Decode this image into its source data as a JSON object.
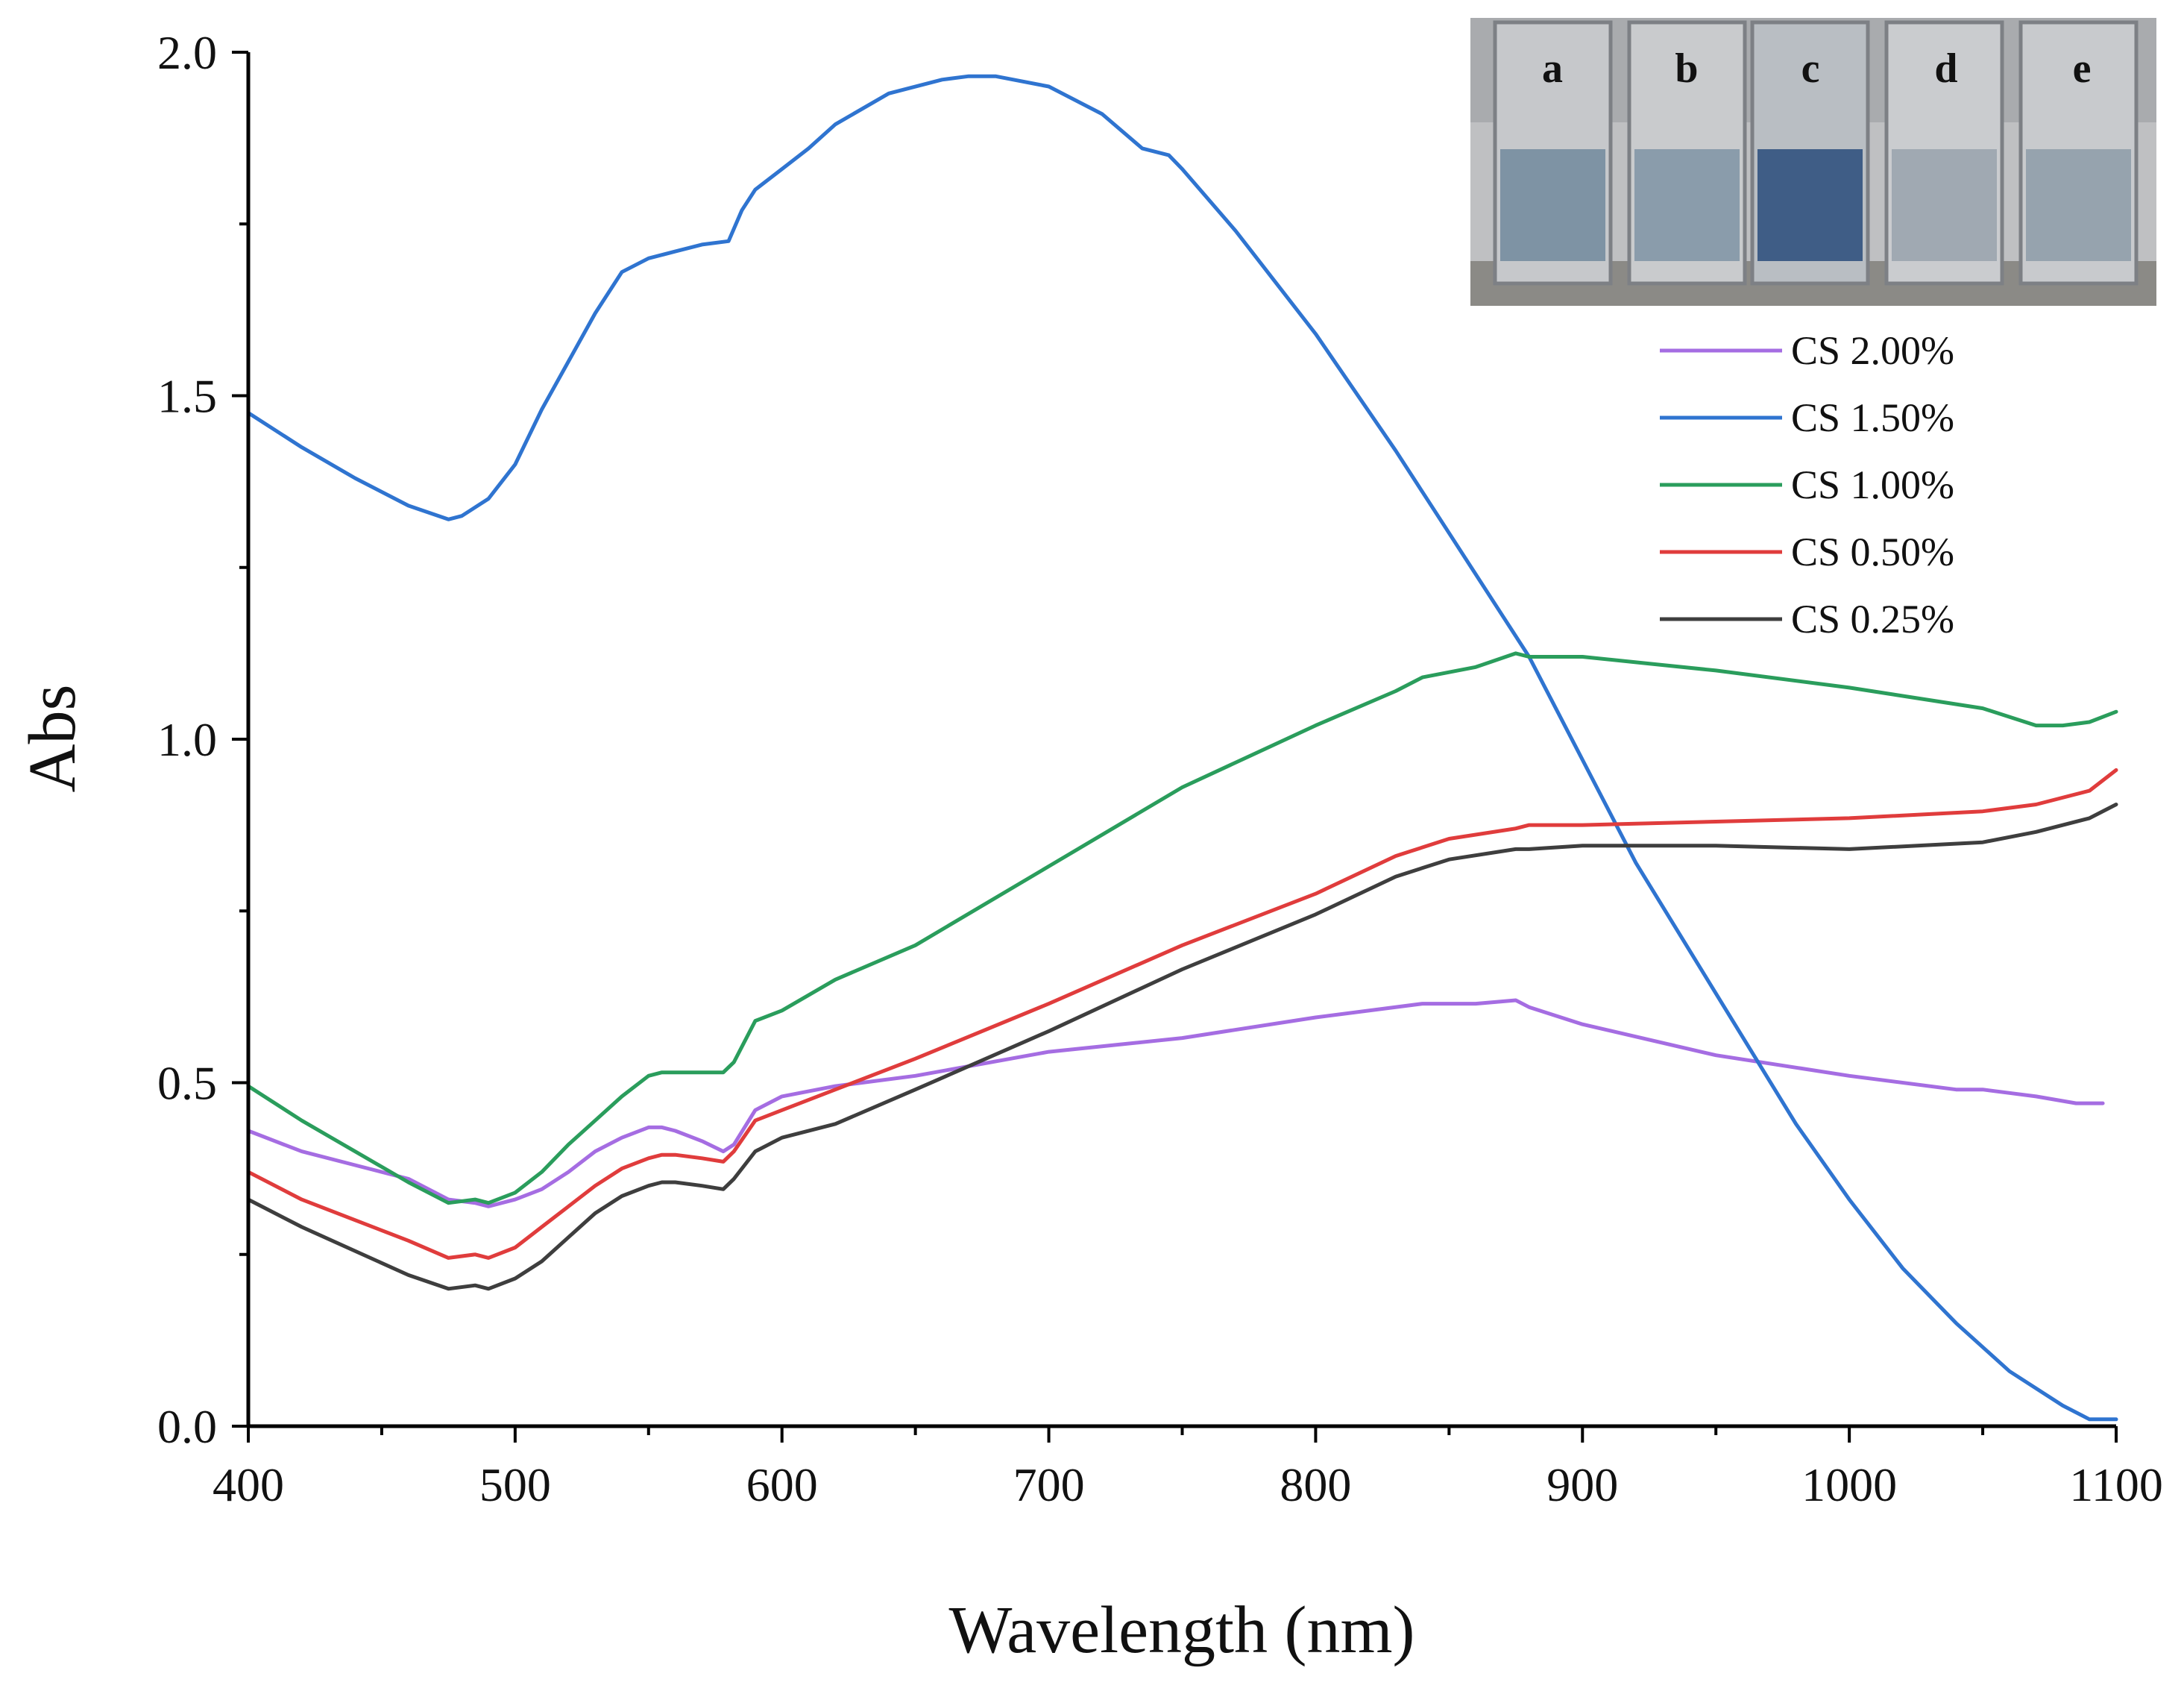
{
  "chart_data": {
    "type": "line",
    "title": "",
    "xlabel": "Wavelength (nm)",
    "ylabel": "Abs",
    "xlim": [
      400,
      1100
    ],
    "ylim": [
      0.0,
      2.0
    ],
    "xticks": [
      400,
      500,
      600,
      700,
      800,
      900,
      1000,
      1100
    ],
    "xtick_labels": [
      "400",
      "500",
      "600",
      "700",
      "800",
      "900",
      "1000",
      "1100"
    ],
    "yticks": [
      0.0,
      0.5,
      1.0,
      1.5,
      2.0
    ],
    "ytick_labels": [
      "0.0",
      "0.5",
      "1.0",
      "1.5",
      "2.0"
    ],
    "grid": false,
    "legend_position": "top-right",
    "inset": {
      "description_labels": [
        "a",
        "b",
        "c",
        "d",
        "e"
      ],
      "position": "top-right"
    },
    "series": [
      {
        "name": "CS 2.00%",
        "color": "#a56de2",
        "x": [
          400,
          420,
          440,
          460,
          475,
          485,
          490,
          500,
          510,
          520,
          530,
          540,
          550,
          555,
          560,
          570,
          578,
          582,
          590,
          600,
          620,
          650,
          700,
          750,
          800,
          840,
          860,
          875,
          880,
          900,
          950,
          1000,
          1040,
          1050,
          1060,
          1070,
          1085,
          1095
        ],
        "y": [
          0.43,
          0.4,
          0.38,
          0.36,
          0.33,
          0.325,
          0.32,
          0.33,
          0.345,
          0.37,
          0.4,
          0.42,
          0.435,
          0.435,
          0.43,
          0.415,
          0.4,
          0.41,
          0.46,
          0.48,
          0.495,
          0.51,
          0.545,
          0.565,
          0.595,
          0.615,
          0.615,
          0.62,
          0.61,
          0.585,
          0.54,
          0.51,
          0.49,
          0.49,
          0.485,
          0.48,
          0.47,
          0.47
        ]
      },
      {
        "name": "CS 1.50%",
        "color": "#2f74d0",
        "x": [
          400,
          420,
          440,
          460,
          475,
          480,
          490,
          500,
          510,
          520,
          530,
          540,
          550,
          555,
          560,
          570,
          580,
          585,
          590,
          600,
          610,
          620,
          640,
          660,
          670,
          680,
          700,
          720,
          735,
          745,
          750,
          770,
          800,
          830,
          850,
          870,
          880,
          900,
          920,
          950,
          980,
          1000,
          1020,
          1040,
          1060,
          1080,
          1090,
          1100
        ],
        "y": [
          1.475,
          1.425,
          1.38,
          1.34,
          1.32,
          1.325,
          1.35,
          1.4,
          1.48,
          1.55,
          1.62,
          1.68,
          1.7,
          1.705,
          1.71,
          1.72,
          1.725,
          1.77,
          1.8,
          1.83,
          1.86,
          1.895,
          1.94,
          1.96,
          1.965,
          1.965,
          1.95,
          1.91,
          1.86,
          1.85,
          1.83,
          1.74,
          1.59,
          1.42,
          1.3,
          1.18,
          1.12,
          0.97,
          0.82,
          0.63,
          0.44,
          0.33,
          0.23,
          0.15,
          0.08,
          0.03,
          0.01,
          0.01
        ]
      },
      {
        "name": "CS 1.00%",
        "color": "#2a9d5c",
        "x": [
          400,
          420,
          440,
          460,
          475,
          485,
          490,
          500,
          510,
          520,
          530,
          540,
          550,
          555,
          560,
          570,
          578,
          582,
          590,
          600,
          620,
          650,
          700,
          750,
          800,
          830,
          840,
          860,
          875,
          880,
          900,
          950,
          1000,
          1050,
          1070,
          1080,
          1090,
          1100
        ],
        "y": [
          0.495,
          0.445,
          0.4,
          0.355,
          0.325,
          0.33,
          0.325,
          0.34,
          0.37,
          0.41,
          0.445,
          0.48,
          0.51,
          0.515,
          0.515,
          0.515,
          0.515,
          0.53,
          0.59,
          0.605,
          0.65,
          0.7,
          0.815,
          0.93,
          1.02,
          1.07,
          1.09,
          1.105,
          1.125,
          1.12,
          1.12,
          1.1,
          1.075,
          1.045,
          1.02,
          1.02,
          1.025,
          1.04
        ]
      },
      {
        "name": "CS 0.50%",
        "color": "#e03c3c",
        "x": [
          400,
          420,
          440,
          460,
          475,
          485,
          490,
          500,
          510,
          520,
          530,
          540,
          550,
          555,
          560,
          570,
          578,
          582,
          590,
          600,
          620,
          650,
          700,
          750,
          800,
          830,
          850,
          875,
          880,
          900,
          950,
          1000,
          1050,
          1070,
          1090,
          1100
        ],
        "y": [
          0.37,
          0.33,
          0.3,
          0.27,
          0.245,
          0.25,
          0.245,
          0.26,
          0.29,
          0.32,
          0.35,
          0.375,
          0.39,
          0.395,
          0.395,
          0.39,
          0.385,
          0.4,
          0.445,
          0.46,
          0.49,
          0.535,
          0.615,
          0.7,
          0.775,
          0.83,
          0.855,
          0.87,
          0.875,
          0.875,
          0.88,
          0.885,
          0.895,
          0.905,
          0.925,
          0.955
        ]
      },
      {
        "name": "CS 0.25%",
        "color": "#3e3e3e",
        "x": [
          400,
          420,
          440,
          460,
          475,
          485,
          490,
          500,
          510,
          520,
          530,
          540,
          550,
          555,
          560,
          570,
          578,
          582,
          590,
          600,
          620,
          650,
          700,
          750,
          800,
          830,
          850,
          875,
          880,
          900,
          950,
          1000,
          1050,
          1070,
          1090,
          1100
        ],
        "y": [
          0.33,
          0.29,
          0.255,
          0.22,
          0.2,
          0.205,
          0.2,
          0.215,
          0.24,
          0.275,
          0.31,
          0.335,
          0.35,
          0.355,
          0.355,
          0.35,
          0.345,
          0.36,
          0.4,
          0.42,
          0.44,
          0.49,
          0.575,
          0.665,
          0.745,
          0.8,
          0.825,
          0.84,
          0.84,
          0.845,
          0.845,
          0.84,
          0.85,
          0.865,
          0.885,
          0.905
        ]
      }
    ]
  }
}
